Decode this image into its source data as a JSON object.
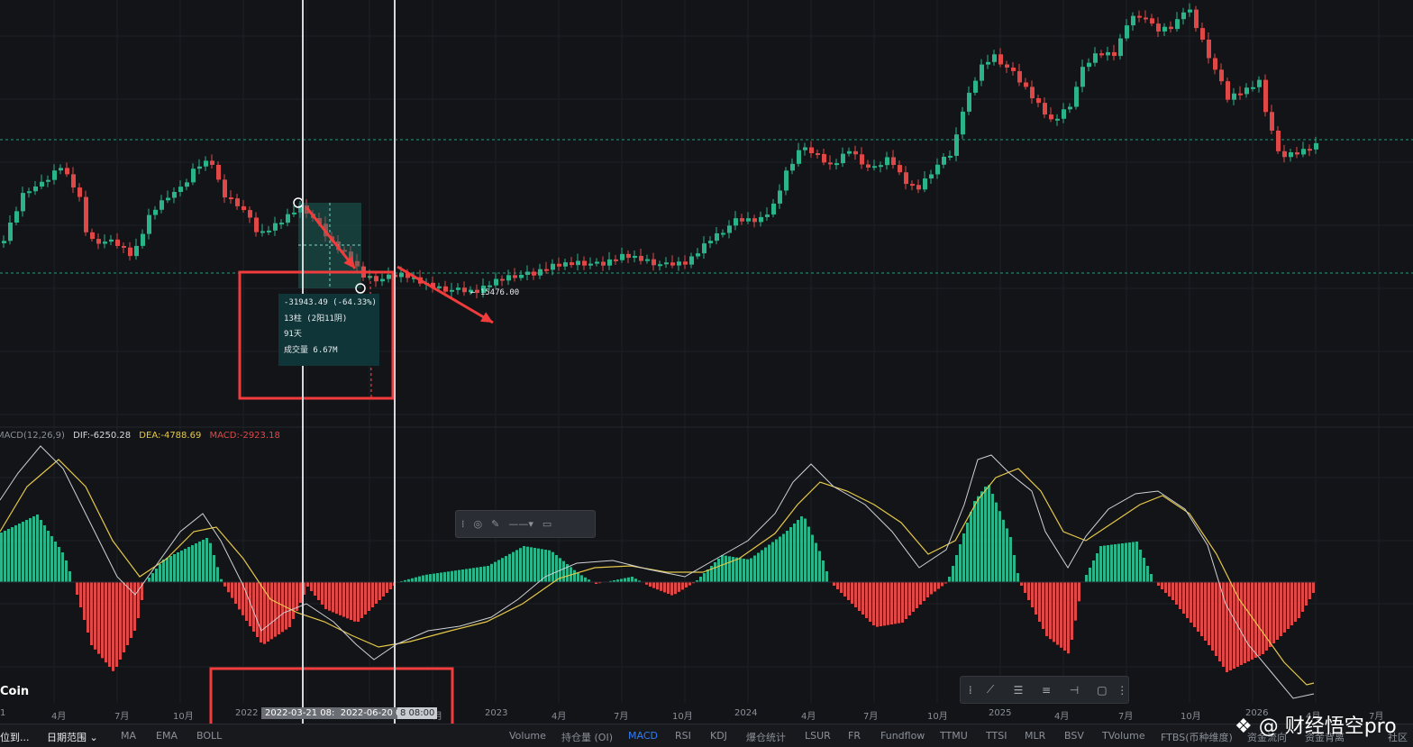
{
  "macd_legend": {
    "name": "MACD(12,26,9)",
    "dif": "DIF:-6250.28",
    "dea": "DEA:-4788.69",
    "macd": "MACD:-2923.18",
    "colors": {
      "name": "#8b9098",
      "dif": "#d6d8dc",
      "dea": "#e6c84a",
      "macd": "#e04848"
    }
  },
  "tooltip": {
    "change": "-31943.49 (-64.33%)",
    "bars": "13柱 (2阳11阴)",
    "days": "91天",
    "volume": "成交量 6.67M"
  },
  "price_label": "← 15476.00",
  "coin_label": "Coin",
  "x_axis": {
    "labels": [
      "1",
      "4月",
      "7月",
      "10月",
      "2022",
      "月",
      "2023",
      "4月",
      "7月",
      "10月",
      "2024",
      "4月",
      "7月",
      "10月",
      "2025",
      "4月",
      "7月",
      "10月",
      "2026",
      "4月",
      "7月"
    ],
    "selected_start": "2022-03-21 08:",
    "selected_end": "2022-06-20 08:00",
    "cursor_label": "8 08:00"
  },
  "bottom_bar": {
    "left_items": [
      "位到...",
      "日期范围 ⌄",
      "MA",
      "EMA",
      "BOLL"
    ],
    "indicators": [
      "Volume",
      "持仓量 (OI)",
      "MACD",
      "RSI",
      "KDJ",
      "爆仓统计",
      "LSUR",
      "FR",
      "Fundflow",
      "TTMU",
      "TTSI",
      "MLR",
      "BSV",
      "TVolume",
      "FTBS(币种维度)",
      "资金流向",
      "资金背离",
      "社区"
    ],
    "active": "MACD"
  },
  "watermark": "❖ @ 财经悟空pro",
  "mini_toolbar": {
    "icons": [
      "drag-handle-icon",
      "color-icon",
      "pencil-icon",
      "line-style-icon",
      "chevron-down-icon",
      "template-icon"
    ]
  },
  "drawing_toolbar": {
    "icons": [
      "drag-handle-icon",
      "trend-line-icon",
      "parallel-lines-icon",
      "horizontal-lines-icon",
      "horizontal-ray-icon",
      "rectangle-icon",
      "more-icon"
    ]
  },
  "colors": {
    "up": "#2bb38a",
    "down": "#e04848",
    "background": "#121417",
    "annotation": "#f23c3c"
  }
}
